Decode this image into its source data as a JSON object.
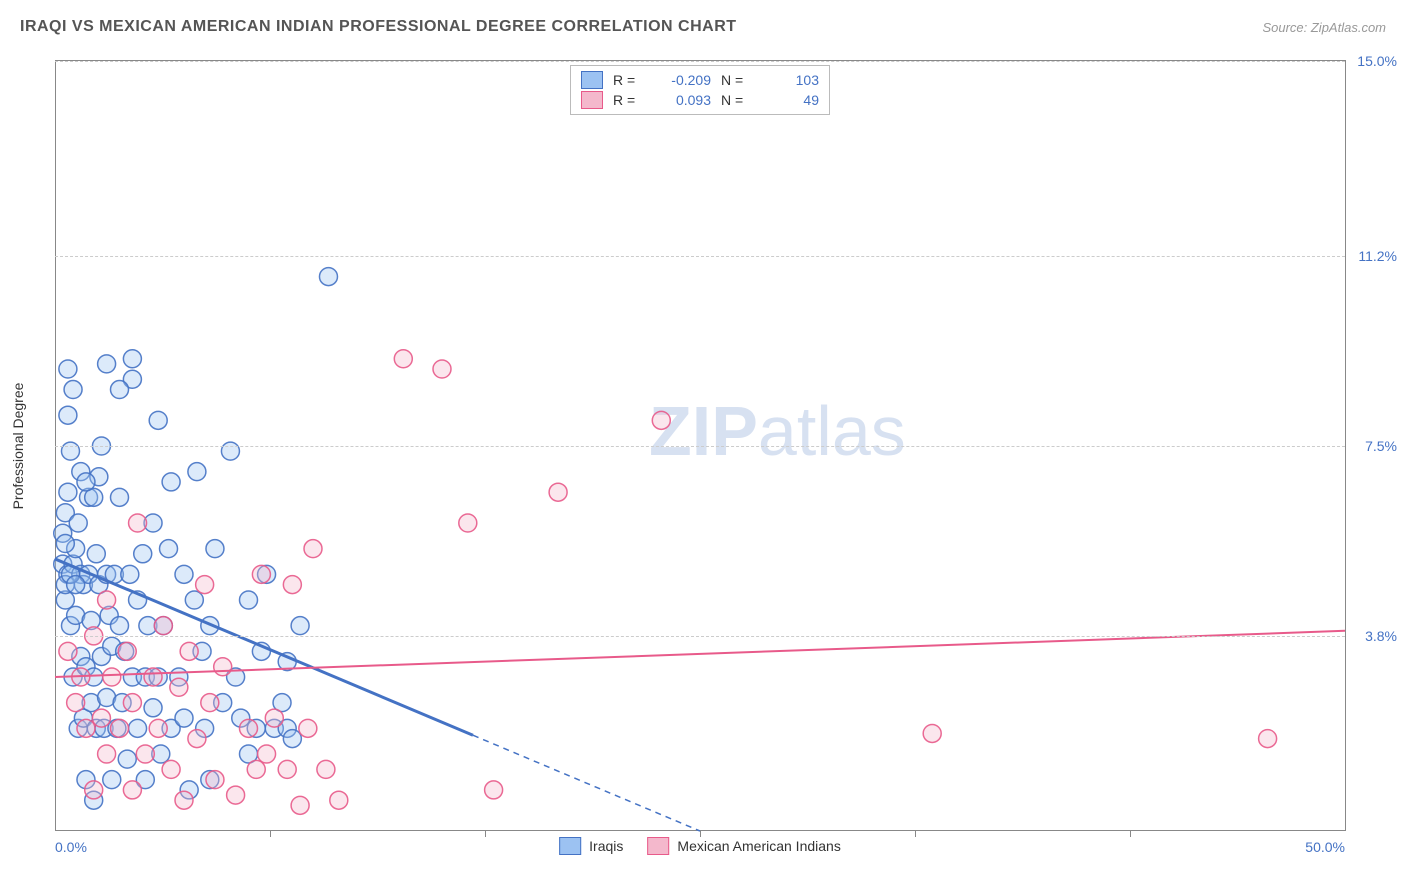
{
  "title": "IRAQI VS MEXICAN AMERICAN INDIAN PROFESSIONAL DEGREE CORRELATION CHART",
  "source": "Source: ZipAtlas.com",
  "ylabel": "Professional Degree",
  "watermark_zip": "ZIP",
  "watermark_atlas": "atlas",
  "chart": {
    "type": "scatter",
    "xlim": [
      0,
      50
    ],
    "ylim": [
      0,
      15
    ],
    "x_ticks_labeled": [
      {
        "v": 0.0,
        "label": "0.0%"
      },
      {
        "v": 50.0,
        "label": "50.0%"
      }
    ],
    "x_ticks_minor": [
      8.33,
      16.67,
      25.0,
      33.33,
      41.67
    ],
    "y_ticks": [
      {
        "v": 3.8,
        "label": "3.8%"
      },
      {
        "v": 7.5,
        "label": "7.5%"
      },
      {
        "v": 11.2,
        "label": "11.2%"
      },
      {
        "v": 15.0,
        "label": "15.0%"
      }
    ],
    "background_color": "#ffffff",
    "grid_color": "#cccccc",
    "axis_color": "#888888",
    "tick_label_color": "#4472c4",
    "marker_radius": 9,
    "marker_fill_opacity": 0.35,
    "marker_stroke_opacity": 0.9,
    "marker_stroke_width": 1.5,
    "series": [
      {
        "key": "iraqis",
        "name": "Iraqis",
        "stroke": "#4472c4",
        "fill": "#9cc2f2",
        "R": -0.209,
        "N": 103,
        "trend": {
          "x1": 0,
          "y1": 5.3,
          "x2": 25,
          "y2": 0,
          "solid_until_x": 16.2,
          "width": 3
        },
        "points": [
          [
            0.3,
            5.2
          ],
          [
            0.3,
            5.8
          ],
          [
            0.4,
            6.2
          ],
          [
            0.4,
            4.5
          ],
          [
            0.5,
            8.1
          ],
          [
            0.5,
            6.6
          ],
          [
            0.5,
            5.0
          ],
          [
            0.6,
            4.0
          ],
          [
            0.6,
            7.4
          ],
          [
            0.7,
            3.0
          ],
          [
            0.7,
            5.2
          ],
          [
            0.7,
            8.6
          ],
          [
            0.8,
            4.2
          ],
          [
            0.8,
            5.5
          ],
          [
            0.9,
            2.0
          ],
          [
            0.9,
            6.0
          ],
          [
            1.0,
            3.4
          ],
          [
            1.0,
            5.0
          ],
          [
            1.0,
            7.0
          ],
          [
            1.1,
            2.2
          ],
          [
            1.1,
            4.8
          ],
          [
            1.2,
            1.0
          ],
          [
            1.2,
            3.2
          ],
          [
            1.3,
            5.0
          ],
          [
            1.3,
            6.5
          ],
          [
            1.4,
            2.5
          ],
          [
            1.4,
            4.1
          ],
          [
            1.5,
            0.6
          ],
          [
            1.5,
            3.0
          ],
          [
            1.6,
            5.4
          ],
          [
            1.6,
            2.0
          ],
          [
            1.7,
            4.8
          ],
          [
            1.7,
            6.9
          ],
          [
            1.8,
            3.4
          ],
          [
            1.8,
            7.5
          ],
          [
            1.9,
            2.0
          ],
          [
            2.0,
            5.0
          ],
          [
            2.0,
            2.6
          ],
          [
            2.1,
            4.2
          ],
          [
            2.2,
            1.0
          ],
          [
            2.2,
            3.6
          ],
          [
            2.3,
            5.0
          ],
          [
            2.4,
            2.0
          ],
          [
            2.5,
            4.0
          ],
          [
            2.5,
            6.5
          ],
          [
            2.6,
            2.5
          ],
          [
            2.7,
            3.5
          ],
          [
            2.8,
            1.4
          ],
          [
            2.9,
            5.0
          ],
          [
            3.0,
            3.0
          ],
          [
            3.0,
            8.8
          ],
          [
            3.2,
            2.0
          ],
          [
            3.2,
            4.5
          ],
          [
            3.4,
            5.4
          ],
          [
            3.5,
            1.0
          ],
          [
            3.5,
            3.0
          ],
          [
            3.6,
            4.0
          ],
          [
            3.8,
            2.4
          ],
          [
            3.8,
            6.0
          ],
          [
            4.0,
            8.0
          ],
          [
            4.0,
            3.0
          ],
          [
            4.1,
            1.5
          ],
          [
            4.2,
            4.0
          ],
          [
            4.4,
            5.5
          ],
          [
            4.5,
            2.0
          ],
          [
            4.5,
            6.8
          ],
          [
            4.8,
            3.0
          ],
          [
            5.0,
            5.0
          ],
          [
            5.0,
            2.2
          ],
          [
            5.2,
            0.8
          ],
          [
            5.4,
            4.5
          ],
          [
            5.5,
            7.0
          ],
          [
            5.7,
            3.5
          ],
          [
            5.8,
            2.0
          ],
          [
            6.0,
            1.0
          ],
          [
            6.0,
            4.0
          ],
          [
            6.2,
            5.5
          ],
          [
            6.5,
            2.5
          ],
          [
            6.8,
            7.4
          ],
          [
            7.0,
            3.0
          ],
          [
            7.2,
            2.2
          ],
          [
            7.5,
            4.5
          ],
          [
            7.5,
            1.5
          ],
          [
            7.8,
            2.0
          ],
          [
            8.0,
            3.5
          ],
          [
            8.2,
            5.0
          ],
          [
            8.5,
            2.0
          ],
          [
            8.8,
            2.5
          ],
          [
            9.0,
            2.0
          ],
          [
            9.0,
            3.3
          ],
          [
            9.2,
            1.8
          ],
          [
            9.5,
            4.0
          ],
          [
            10.6,
            10.8
          ],
          [
            2.0,
            9.1
          ],
          [
            3.0,
            9.2
          ],
          [
            2.5,
            8.6
          ],
          [
            0.5,
            9.0
          ],
          [
            1.5,
            6.5
          ],
          [
            1.2,
            6.8
          ],
          [
            0.4,
            4.8
          ],
          [
            0.4,
            5.6
          ],
          [
            0.6,
            5.0
          ],
          [
            0.8,
            4.8
          ]
        ]
      },
      {
        "key": "mexican",
        "name": "Mexican American Indians",
        "stroke": "#e85a8a",
        "fill": "#f4b8cc",
        "R": 0.093,
        "N": 49,
        "trend": {
          "x1": 0,
          "y1": 3.0,
          "x2": 50,
          "y2": 3.9,
          "solid_until_x": 50,
          "width": 2
        },
        "points": [
          [
            0.5,
            3.5
          ],
          [
            0.8,
            2.5
          ],
          [
            1.0,
            3.0
          ],
          [
            1.2,
            2.0
          ],
          [
            1.5,
            3.8
          ],
          [
            1.5,
            0.8
          ],
          [
            1.8,
            2.2
          ],
          [
            2.0,
            4.5
          ],
          [
            2.0,
            1.5
          ],
          [
            2.2,
            3.0
          ],
          [
            2.5,
            2.0
          ],
          [
            2.8,
            3.5
          ],
          [
            3.0,
            0.8
          ],
          [
            3.0,
            2.5
          ],
          [
            3.2,
            6.0
          ],
          [
            3.5,
            1.5
          ],
          [
            3.8,
            3.0
          ],
          [
            4.0,
            2.0
          ],
          [
            4.2,
            4.0
          ],
          [
            4.5,
            1.2
          ],
          [
            4.8,
            2.8
          ],
          [
            5.0,
            0.6
          ],
          [
            5.2,
            3.5
          ],
          [
            5.5,
            1.8
          ],
          [
            5.8,
            4.8
          ],
          [
            6.0,
            2.5
          ],
          [
            6.2,
            1.0
          ],
          [
            6.5,
            3.2
          ],
          [
            7.0,
            0.7
          ],
          [
            7.5,
            2.0
          ],
          [
            7.8,
            1.2
          ],
          [
            8.0,
            5.0
          ],
          [
            8.2,
            1.5
          ],
          [
            8.5,
            2.2
          ],
          [
            9.0,
            1.2
          ],
          [
            9.2,
            4.8
          ],
          [
            9.5,
            0.5
          ],
          [
            9.8,
            2.0
          ],
          [
            10.0,
            5.5
          ],
          [
            10.5,
            1.2
          ],
          [
            11.0,
            0.6
          ],
          [
            13.5,
            9.2
          ],
          [
            15.0,
            9.0
          ],
          [
            16.0,
            6.0
          ],
          [
            17.0,
            0.8
          ],
          [
            19.5,
            6.6
          ],
          [
            23.5,
            8.0
          ],
          [
            34.0,
            1.9
          ],
          [
            47.0,
            1.8
          ]
        ]
      }
    ]
  },
  "legend_top": {
    "R_label": "R =",
    "N_label": "N ="
  },
  "legend_bottom": [
    {
      "key": "iraqis"
    },
    {
      "key": "mexican"
    }
  ]
}
